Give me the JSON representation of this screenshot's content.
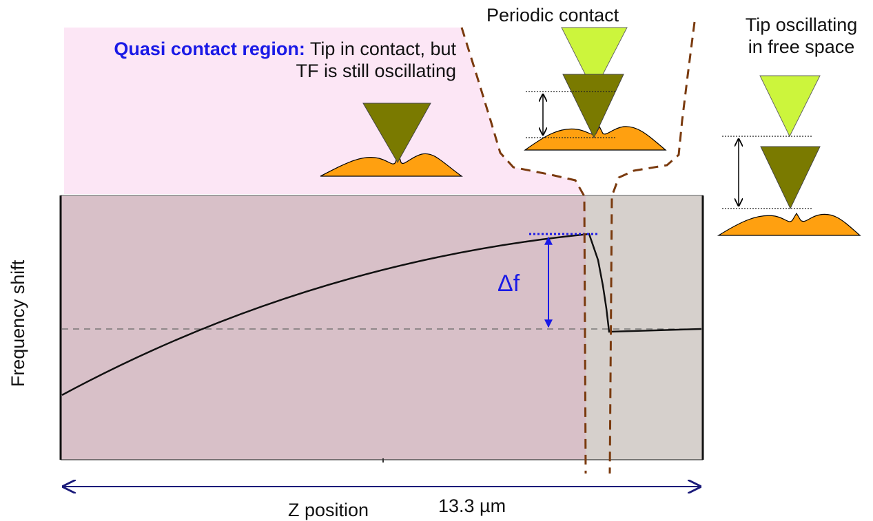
{
  "labels": {
    "quasi_bold": "Quasi contact region:",
    "quasi_rest": " Tip in contact, but TF is still oscillating",
    "periodic": "Periodic contact",
    "free_line1": "Tip oscillating",
    "free_line2": "in free space",
    "delta_f": "Δf",
    "ylabel": "Frequency shift",
    "xlabel": "Z position",
    "distance": "13.3 µm"
  },
  "colors": {
    "quasi_region": "#fce6f5",
    "plot_quasi": "#d8c0c8",
    "plot_free": "#d6d0cc",
    "tip_dark": "#7a7a00",
    "tip_light": "#ccf53c",
    "sample": "#ffa010",
    "dashed_boundary": "#7a3a0e",
    "annotation_blue": "#1a1ae6",
    "arrow_navy": "#1a1a7a"
  }
}
